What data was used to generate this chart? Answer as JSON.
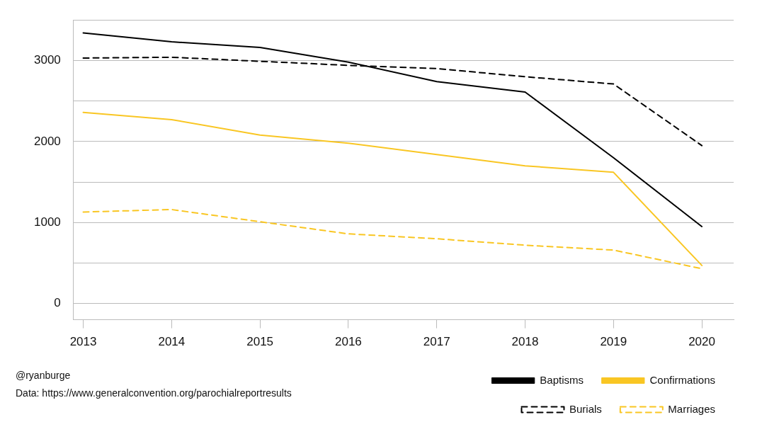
{
  "chart_data": {
    "type": "line",
    "x": [
      2013,
      2014,
      2015,
      2016,
      2017,
      2018,
      2019,
      2020
    ],
    "xlim": [
      2012.89,
      2020.36
    ],
    "xticks": [
      2013,
      2014,
      2015,
      2016,
      2017,
      2018,
      2019,
      2020
    ],
    "ylim": [
      -200,
      3500
    ],
    "yticks": [
      0,
      {
        "value": 500,
        "label": null
      },
      1000,
      {
        "value": 1500,
        "label": null
      },
      2000,
      {
        "value": 2500,
        "label": null
      },
      3000,
      {
        "value": 3500,
        "label": null
      }
    ],
    "grid": "y",
    "legend": "bottom right",
    "marker": "none",
    "series": [
      {
        "name": "Baptisms",
        "color": "#000000",
        "line_style": "solid",
        "values": [
          3340,
          3230,
          3160,
          2980,
          2740,
          2610,
          1800,
          950
        ]
      },
      {
        "name": "Confirmations",
        "color": "#f9c623",
        "line_style": "solid",
        "values": [
          2360,
          2270,
          2080,
          1980,
          1840,
          1700,
          1620,
          470
        ]
      },
      {
        "name": "Burials",
        "color": "#000000",
        "line_style": "dashed",
        "values": [
          3030,
          3040,
          2990,
          2940,
          2900,
          2800,
          2710,
          1950
        ]
      },
      {
        "name": "Marriages",
        "color": "#f9c623",
        "line_style": "dashed",
        "values": [
          1130,
          1160,
          1010,
          860,
          800,
          720,
          660,
          430
        ]
      }
    ],
    "annotations": [
      "@ryanburge",
      "Data: https://www.generalconvention.org/parochialreportresults"
    ]
  }
}
